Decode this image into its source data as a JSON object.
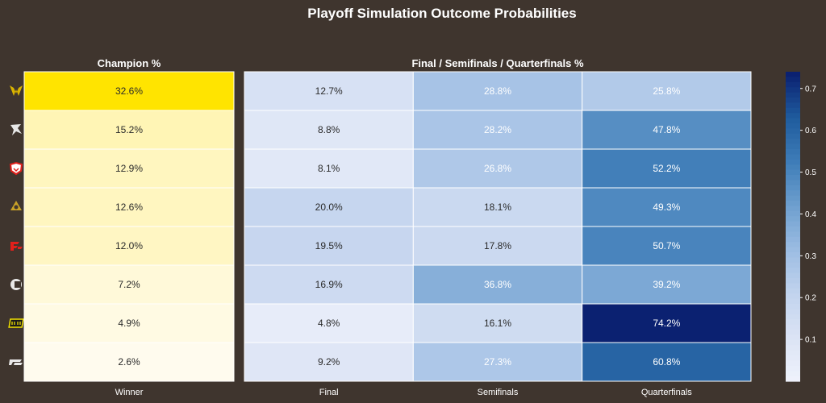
{
  "chart_data": {
    "type": "heatmap",
    "title": "Playoff Simulation Outcome Probabilities",
    "panels": [
      {
        "subtitle": "Champion %",
        "colormap": "yellow",
        "columns": [
          "Winner"
        ],
        "values": [
          [
            32.6
          ],
          [
            15.2
          ],
          [
            12.9
          ],
          [
            12.6
          ],
          [
            12.0
          ],
          [
            7.2
          ],
          [
            4.9
          ],
          [
            2.6
          ]
        ],
        "labels": [
          [
            "32.6%"
          ],
          [
            "15.2%"
          ],
          [
            "12.9%"
          ],
          [
            "12.6%"
          ],
          [
            "12.0%"
          ],
          [
            "7.2%"
          ],
          [
            "4.9%"
          ],
          [
            "2.6%"
          ]
        ]
      },
      {
        "subtitle": "Final / Semifinals / Quarterfinals %",
        "colormap": "blues",
        "columns": [
          "Final",
          "Semifinals",
          "Quarterfinals"
        ],
        "values": [
          [
            12.7,
            28.8,
            25.8
          ],
          [
            8.8,
            28.2,
            47.8
          ],
          [
            8.1,
            26.8,
            52.2
          ],
          [
            20.0,
            18.1,
            49.3
          ],
          [
            19.5,
            17.8,
            50.7
          ],
          [
            16.9,
            36.8,
            39.2
          ],
          [
            4.8,
            16.1,
            74.2
          ],
          [
            9.2,
            27.3,
            60.8
          ]
        ],
        "labels": [
          [
            "12.7%",
            "28.8%",
            "25.8%"
          ],
          [
            "8.8%",
            "28.2%",
            "47.8%"
          ],
          [
            "8.1%",
            "26.8%",
            "52.2%"
          ],
          [
            "20.0%",
            "18.1%",
            "49.3%"
          ],
          [
            "19.5%",
            "17.8%",
            "50.7%"
          ],
          [
            "16.9%",
            "36.8%",
            "39.2%"
          ],
          [
            "4.8%",
            "16.1%",
            "74.2%"
          ],
          [
            "9.2%",
            "27.3%",
            "60.8%"
          ]
        ]
      }
    ],
    "colorbar": {
      "range": [
        0.0,
        0.74
      ],
      "ticks": [
        "0.1",
        "0.2",
        "0.3",
        "0.4",
        "0.5",
        "0.6",
        "0.7"
      ]
    },
    "row_icons": [
      "team-logo-1-icon",
      "team-logo-2-icon",
      "team-logo-3-icon",
      "team-logo-4-icon",
      "team-logo-5-icon",
      "team-logo-6-icon",
      "team-logo-7-icon",
      "team-logo-8-icon"
    ],
    "colors": {
      "background": "#3f352e",
      "gridline": "#ffffff",
      "yellow_low": "#fffbee",
      "yellow_high": "#ffe400",
      "blue_low": "#f0f3fc",
      "blue_high": "#0b2171"
    }
  }
}
